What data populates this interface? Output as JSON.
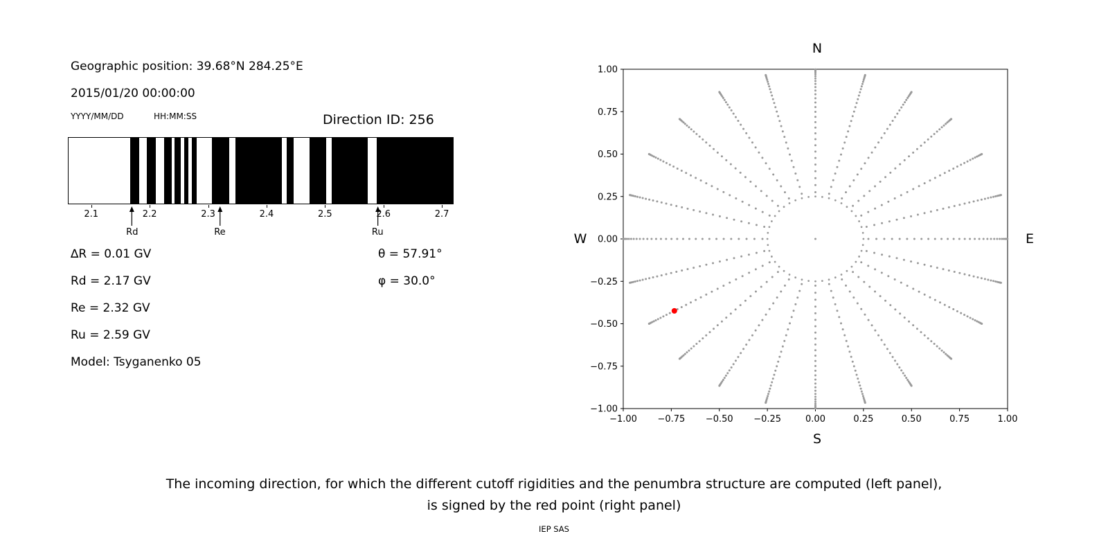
{
  "figure": {
    "background": "#ffffff"
  },
  "left_panel": {
    "geo_position": "Geographic position: 39.68°N 284.25°E",
    "datetime": "2015/01/20 00:00:00",
    "date_format_label": "YYYY/MM/DD",
    "time_format_label": "HH:MM:SS",
    "direction_id_label": "Direction ID: 256",
    "values": {
      "delta_r": "∆R = 0.01 GV",
      "rd": "Rd = 2.17 GV",
      "re": "Re = 2.32 GV",
      "ru": "Ru = 2.59 GV",
      "model": "Model: Tsyganenko 05",
      "theta": "θ = 57.91°",
      "phi": "φ = 30.0°"
    }
  },
  "right_panel": {
    "compass": {
      "north": "N",
      "south": "S",
      "east": "E",
      "west": "W"
    }
  },
  "caption": {
    "line1": "The incoming direction, for which the different cutoff rigidities and the penumbra structure are computed (left panel),",
    "line2": "is signed by the red point (right panel)",
    "credit": "IEP SAS"
  },
  "chart_data": [
    {
      "type": "bar",
      "name": "penumbra-structure",
      "xlim": [
        2.06,
        2.72
      ],
      "x_ticks": [
        {
          "value": 2.1,
          "label": "2.1"
        },
        {
          "value": 2.2,
          "label": "2.2"
        },
        {
          "value": 2.3,
          "label": "2.3"
        },
        {
          "value": 2.4,
          "label": "2.4"
        },
        {
          "value": 2.5,
          "label": "2.5"
        },
        {
          "value": 2.6,
          "label": "2.6"
        },
        {
          "value": 2.7,
          "label": "2.7"
        }
      ],
      "black_bands_gv": [
        [
          2.166,
          2.181
        ],
        [
          2.194,
          2.21
        ],
        [
          2.224,
          2.237
        ],
        [
          2.242,
          2.253
        ],
        [
          2.258,
          2.266
        ],
        [
          2.272,
          2.28
        ],
        [
          2.306,
          2.336
        ],
        [
          2.347,
          2.426
        ],
        [
          2.434,
          2.446
        ],
        [
          2.474,
          2.502
        ],
        [
          2.512,
          2.574
        ],
        [
          2.589,
          2.72
        ]
      ],
      "band_color": "#000000",
      "markers": [
        {
          "label": "Rd",
          "value": 2.17
        },
        {
          "label": "Re",
          "value": 2.32
        },
        {
          "label": "Ru",
          "value": 2.59
        }
      ],
      "parameters": {
        "delta_R_GV": 0.01,
        "Rd_GV": 2.17,
        "Re_GV": 2.32,
        "Ru_GV": 2.59,
        "theta_deg": 57.91,
        "phi_deg": 30.0,
        "model": "Tsyganenko 05",
        "direction_id": 256
      }
    },
    {
      "type": "scatter",
      "name": "incoming-direction-map",
      "xlim": [
        -1,
        1
      ],
      "ylim": [
        -1,
        1
      ],
      "x_ticks": [
        {
          "value": -1,
          "label": "−1.00"
        },
        {
          "value": -0.75,
          "label": "−0.75"
        },
        {
          "value": -0.5,
          "label": "−0.50"
        },
        {
          "value": -0.25,
          "label": "−0.25"
        },
        {
          "value": 0,
          "label": "0.00"
        },
        {
          "value": 0.25,
          "label": "0.25"
        },
        {
          "value": 0.5,
          "label": "0.50"
        },
        {
          "value": 0.75,
          "label": "0.75"
        },
        {
          "value": 1,
          "label": "1.00"
        }
      ],
      "y_ticks": [
        {
          "value": 1,
          "label": "1.00"
        },
        {
          "value": 0.75,
          "label": "0.75"
        },
        {
          "value": 0.5,
          "label": "0.50"
        },
        {
          "value": 0.25,
          "label": "0.25"
        },
        {
          "value": 0,
          "label": "0.00"
        },
        {
          "value": -0.25,
          "label": "−0.25"
        },
        {
          "value": -0.5,
          "label": "−0.50"
        },
        {
          "value": -0.75,
          "label": "−0.75"
        },
        {
          "value": -1,
          "label": "−1.00"
        }
      ],
      "compass_labels": {
        "top": "N",
        "bottom": "S",
        "left": "W",
        "right": "E"
      },
      "gray_dots": {
        "color": "#9a9a9a",
        "azimuth_step_deg": 15,
        "zenith_start_deg": 16,
        "zenith_step_deg": 2.5,
        "zenith_end_deg": 88.5,
        "radius_rule": "sin(zenith)"
      },
      "inner_ring": {
        "radius": 0.25,
        "n_points": 44
      },
      "center_dot": {
        "x": 0,
        "y": 0
      },
      "red_point": {
        "x": -0.734,
        "y": -0.424,
        "color": "#ff0000"
      }
    }
  ]
}
